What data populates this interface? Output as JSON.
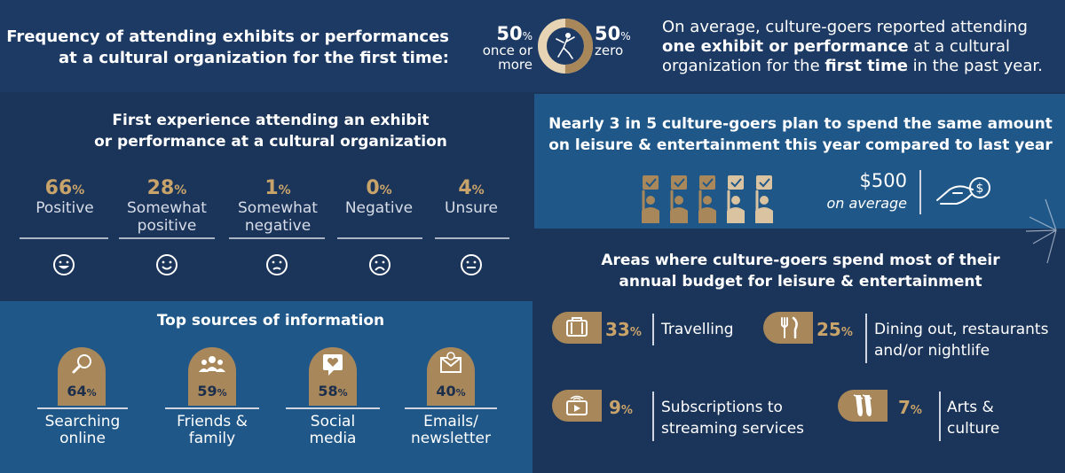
{
  "top": {
    "title_line1": "Frequency of attending exhibits or performances",
    "title_line2": "at a cultural organization for the first time:",
    "left_value": "50",
    "left_unit": "%",
    "left_label_line1": "once or",
    "left_label_line2": "more",
    "right_value": "50",
    "right_unit": "%",
    "right_label": "zero",
    "donut_split": 0.5,
    "desc_1": "On average, culture-goers reported attending",
    "desc_bold_1": "one exhibit or performance",
    "desc_2": " at a cultural",
    "desc_3": "organization for the ",
    "desc_bold_2": "first time",
    "desc_4": " in the past year."
  },
  "first_experience": {
    "title_line1": "First experience attending an exhibit",
    "title_line2": "or performance at a cultural organization",
    "items": [
      {
        "value": "66",
        "unit": "%",
        "label_line1": "Positive",
        "label_line2": "",
        "face": "smile-big-icon"
      },
      {
        "value": "28",
        "unit": "%",
        "label_line1": "Somewhat",
        "label_line2": "positive",
        "face": "smile-icon"
      },
      {
        "value": "1",
        "unit": "%",
        "label_line1": "Somewhat",
        "label_line2": "negative",
        "face": "slight-frown-icon"
      },
      {
        "value": "0",
        "unit": "%",
        "label_line1": "Negative",
        "label_line2": "",
        "face": "frown-icon"
      },
      {
        "value": "4",
        "unit": "%",
        "label_line1": "Unsure",
        "label_line2": "",
        "face": "neutral-face-icon"
      }
    ]
  },
  "sources": {
    "title": "Top sources of information",
    "items": [
      {
        "value": "64",
        "unit": "%",
        "label_line1": "Searching",
        "label_line2": "online",
        "icon": "magnifier-icon"
      },
      {
        "value": "59",
        "unit": "%",
        "label_line1": "Friends &",
        "label_line2": "family",
        "icon": "people-icon"
      },
      {
        "value": "58",
        "unit": "%",
        "label_line1": "Social",
        "label_line2": "media",
        "icon": "heart-chat-icon"
      },
      {
        "value": "40",
        "unit": "%",
        "label_line1": "Emails/",
        "label_line2": "newsletter",
        "icon": "email-icon"
      }
    ]
  },
  "spend": {
    "title_line1": "Nearly 3 in 5 culture-goers plan to spend the same amount",
    "title_line2": "on leisure & entertainment this year compared to last year",
    "amount": "$500",
    "amount_sub": "on average",
    "people_highlighted": 3,
    "people_total": 5
  },
  "areas": {
    "title_line1": "Areas where culture-goers spend most of their",
    "title_line2": "annual budget for leisure & entertainment",
    "items": [
      {
        "value": "33",
        "unit": "%",
        "label_line1": "Travelling",
        "label_line2": "",
        "icon": "suitcase-icon"
      },
      {
        "value": "25",
        "unit": "%",
        "label_line1": "Dining out, restaurants",
        "label_line2": "and/or nightlife",
        "icon": "cutlery-icon"
      },
      {
        "value": "9",
        "unit": "%",
        "label_line1": "Subscriptions to",
        "label_line2": "streaming services",
        "icon": "streaming-icon"
      },
      {
        "value": "7",
        "unit": "%",
        "label_line1": "Arts &",
        "label_line2": "culture",
        "icon": "ballet-shoes-icon"
      }
    ]
  },
  "colors": {
    "gold": "#c9a46a",
    "badge": "#a8875a",
    "navy": "#1b3459",
    "blue": "#1f5788"
  }
}
